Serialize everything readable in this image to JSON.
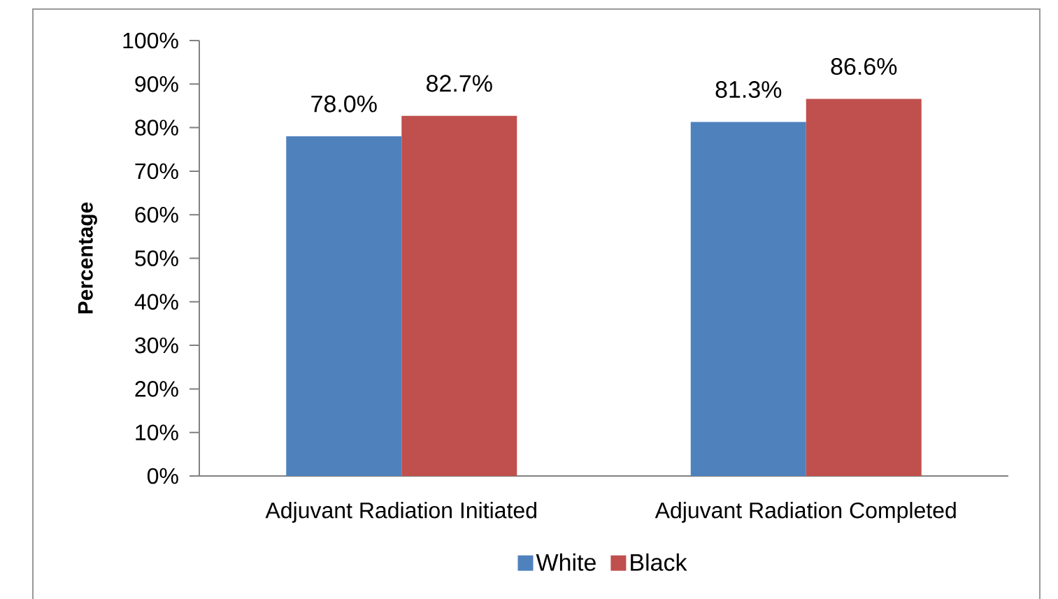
{
  "chart_data": {
    "type": "bar",
    "ylabel": "Percentage",
    "categories": [
      "Adjuvant Radiation Initiated",
      "Adjuvant Radiation Completed"
    ],
    "series": [
      {
        "name": "White",
        "color": "#4f81bd",
        "values": [
          78.0,
          81.3
        ],
        "value_labels": [
          "78.0%",
          "81.3%"
        ]
      },
      {
        "name": "Black",
        "color": "#c0504d",
        "values": [
          82.7,
          86.6
        ],
        "value_labels": [
          "82.7%",
          "86.6%"
        ]
      }
    ],
    "ylim": [
      0,
      100
    ],
    "yticks": [
      {
        "value": 0,
        "label": "0%"
      },
      {
        "value": 10,
        "label": "10%"
      },
      {
        "value": 20,
        "label": "20%"
      },
      {
        "value": 30,
        "label": "30%"
      },
      {
        "value": 40,
        "label": "40%"
      },
      {
        "value": 50,
        "label": "50%"
      },
      {
        "value": 60,
        "label": "60%"
      },
      {
        "value": 70,
        "label": "70%"
      },
      {
        "value": 80,
        "label": "80%"
      },
      {
        "value": 90,
        "label": "90%"
      },
      {
        "value": 100,
        "label": "100%"
      }
    ],
    "grid": false,
    "legend": "bottom"
  }
}
